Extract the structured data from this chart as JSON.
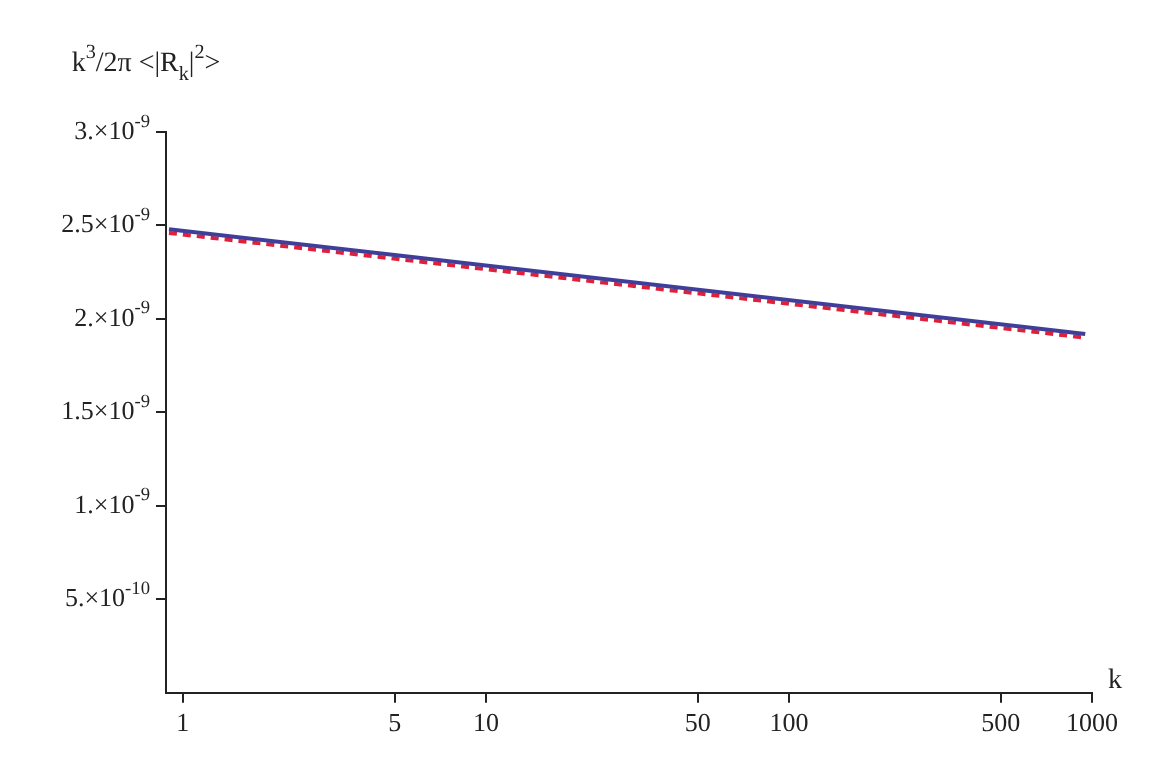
{
  "chart_data": {
    "type": "line",
    "ylabel": "k$^{3}$/2π <|R$_{k}$|$^{2}$>",
    "xlabel": "k",
    "log": "x",
    "x": [
      0.9,
      950
    ],
    "series": [
      {
        "color": "#3f3f9a",
        "values": [
          2.48e-09,
          1.92e-09
        ],
        "line_style": "solid"
      },
      {
        "color": "#e0203a",
        "values": [
          2.46e-09,
          1.9e-09
        ],
        "line_style": "dashed"
      }
    ],
    "xlim": [
      0.88,
      1000
    ],
    "xticks": [
      1,
      5,
      10,
      50,
      100,
      500,
      1000
    ],
    "ylim": [
      0,
      3e-09
    ],
    "yticks": [
      {
        "value": 5e-10,
        "label": "5.×10$^{-10}$"
      },
      {
        "value": 1e-09,
        "label": "1.×10$^{-9}$"
      },
      {
        "value": 1.5e-09,
        "label": "1.5×10$^{-9}$"
      },
      {
        "value": 2e-09,
        "label": "2.×10$^{-9}$"
      },
      {
        "value": 2.5e-09,
        "label": "2.5×10$^{-9}$"
      },
      {
        "value": 3e-09,
        "label": "3.×10$^{-9}$"
      }
    ],
    "grid": false,
    "legend": false,
    "marker": "none"
  }
}
